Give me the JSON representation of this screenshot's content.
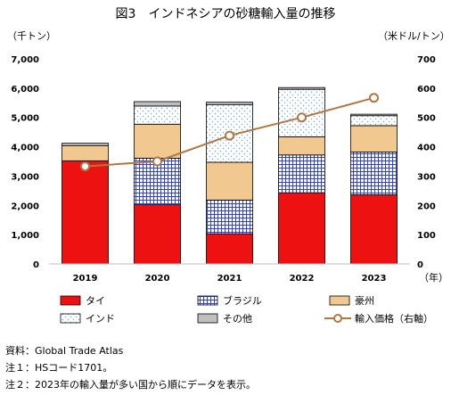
{
  "chart_data": {
    "type": "bar",
    "title": "図3　インドネシアの砂糖輸入量の推移",
    "y_left_unit": "（千トン）",
    "y_right_unit": "（米ドル/トン）",
    "x_unit": "（年）",
    "categories": [
      "2019",
      "2020",
      "2021",
      "2022",
      "2023"
    ],
    "ylim_left": [
      0,
      7000
    ],
    "ylim_right": [
      0,
      700
    ],
    "y_left_ticks": [
      "0",
      "1,000",
      "2,000",
      "3,000",
      "4,000",
      "5,000",
      "6,000",
      "7,000"
    ],
    "y_right_ticks": [
      "0",
      "100",
      "200",
      "300",
      "400",
      "500",
      "600",
      "700"
    ],
    "stacked_series": [
      {
        "name": "タイ",
        "color": "#ee1111",
        "pattern": "solid",
        "values": [
          3520,
          2020,
          1030,
          2430,
          2360
        ]
      },
      {
        "name": "ブラジル",
        "color": "#3344cc",
        "pattern": "grid",
        "values": [
          0,
          1590,
          1150,
          1290,
          1460
        ]
      },
      {
        "name": "豪州",
        "color": "#f0c890",
        "pattern": "solid",
        "values": [
          520,
          1160,
          1290,
          620,
          900
        ]
      },
      {
        "name": "インド",
        "color": "#66aadd",
        "pattern": "dots",
        "values": [
          0,
          620,
          1970,
          1620,
          340
        ]
      },
      {
        "name": "その他",
        "color": "#bfbfbf",
        "pattern": "solid",
        "values": [
          80,
          150,
          80,
          60,
          50
        ]
      }
    ],
    "line_series": {
      "name": "輸入価格（右軸）",
      "color": "#b07840",
      "axis": "right",
      "values": [
        333,
        350,
        438,
        500,
        567
      ]
    },
    "legend_position": "bottom",
    "grid": false
  },
  "notes": [
    "資料：Global Trade Atlas",
    "注１：HSコード1701。",
    "注２：2023年の輸入量が多い国から順にデータを表示。"
  ]
}
